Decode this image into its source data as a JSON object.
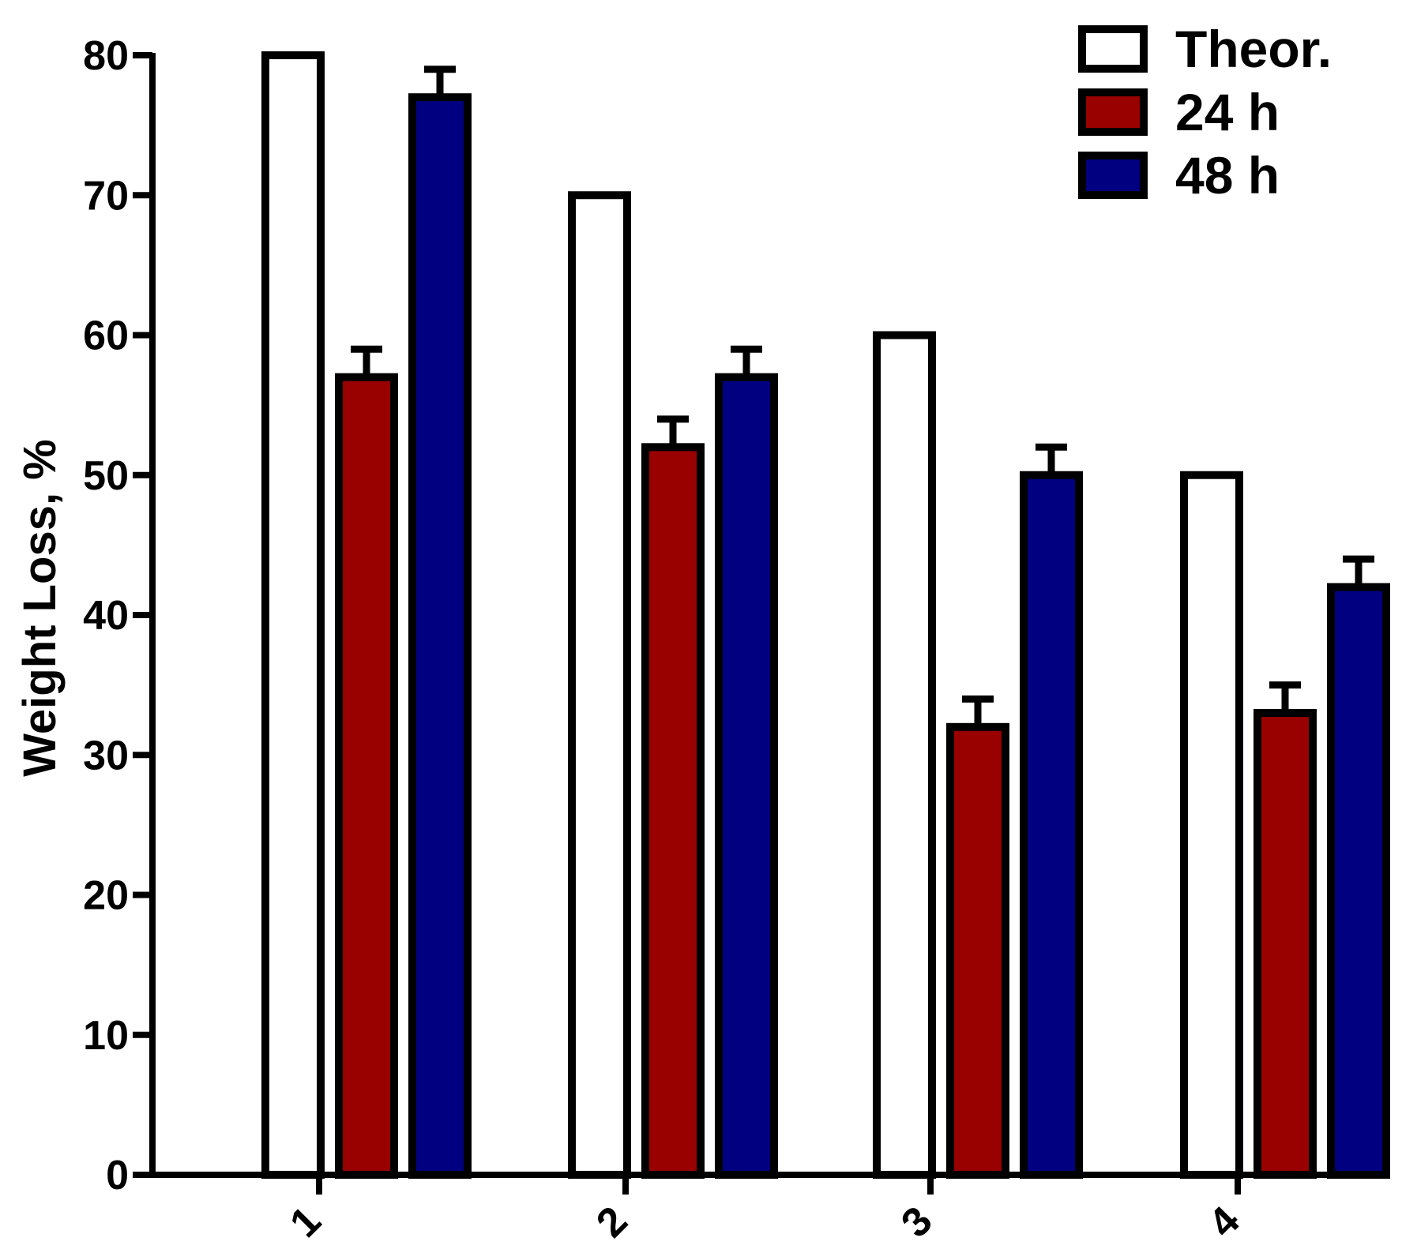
{
  "chart_data": {
    "type": "bar",
    "title": "",
    "xlabel": "",
    "ylabel": "Weight Loss, %",
    "ylim": [
      0,
      80
    ],
    "yticks": [
      "0",
      "10",
      "20",
      "30",
      "40",
      "50",
      "60",
      "70",
      "80"
    ],
    "categories": [
      "1",
      "2",
      "3",
      "4"
    ],
    "series": [
      {
        "name": "Theor.",
        "color": "#ffffff",
        "values": [
          80,
          70,
          60,
          50
        ],
        "errors": null
      },
      {
        "name": "24 h",
        "color": "#990000",
        "values": [
          57,
          52,
          32,
          33
        ],
        "errors": [
          2,
          2,
          2,
          2
        ]
      },
      {
        "name": "48 h",
        "color": "#000080",
        "values": [
          77,
          57,
          50,
          42
        ],
        "errors": [
          2,
          2,
          2,
          2
        ]
      }
    ],
    "legend_position": "top-right",
    "grid": false
  }
}
